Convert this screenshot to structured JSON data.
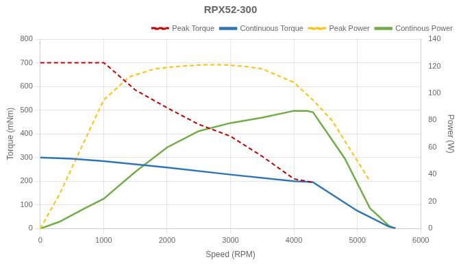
{
  "chart_data": {
    "type": "line",
    "title": "RPX52-300",
    "xlabel": "Speed (RPM)",
    "ylabel": "Torque (mNm)",
    "y2label": "Power (W)",
    "xlim": [
      0,
      6000
    ],
    "xticks": [
      0,
      1000,
      2000,
      3000,
      4000,
      5000,
      6000
    ],
    "ylim": [
      0,
      800
    ],
    "yticks": [
      0,
      100,
      200,
      300,
      400,
      500,
      600,
      700,
      800
    ],
    "y2lim": [
      0,
      140
    ],
    "y2ticks": [
      0,
      20,
      40,
      60,
      80,
      100,
      120,
      140
    ],
    "grid": true,
    "legend": "upper right",
    "series": [
      {
        "name": "Peak Torque",
        "color": "#c00000",
        "line_style": "dashed",
        "axis": "y",
        "x": [
          0,
          700,
          1000,
          1050,
          1500,
          2000,
          2500,
          3000,
          3500,
          4000,
          4200,
          4300
        ],
        "values": [
          700,
          700,
          700,
          690,
          585,
          510,
          440,
          390,
          305,
          210,
          200,
          195
        ]
      },
      {
        "name": "Continuous Torque",
        "color": "#2e75b6",
        "line_style": "solid",
        "axis": "y",
        "x": [
          0,
          500,
          1000,
          2000,
          3000,
          4000,
          4200,
          4300,
          5000,
          5500,
          5600
        ],
        "values": [
          300,
          295,
          285,
          258,
          228,
          200,
          198,
          196,
          75,
          8,
          2
        ]
      },
      {
        "name": "Peak Power",
        "color": "#ffc000",
        "line_style": "dashed",
        "axis": "y2",
        "x": [
          0,
          300,
          700,
          1000,
          1400,
          1800,
          2200,
          2600,
          2900,
          3200,
          3500,
          4000,
          4300,
          4600,
          5000,
          5200
        ],
        "values": [
          0,
          25,
          65,
          95,
          112,
          118,
          120,
          121,
          121,
          120,
          118,
          108,
          95,
          80,
          50,
          35
        ]
      },
      {
        "name": "Continous Power",
        "color": "#70ad47",
        "line_style": "solid",
        "axis": "y2",
        "x": [
          0,
          300,
          700,
          1000,
          1500,
          2000,
          2500,
          3000,
          3500,
          4000,
          4200,
          4300,
          4800,
          5200,
          5500,
          5600
        ],
        "values": [
          0,
          5,
          15,
          22,
          42,
          60,
          72,
          78,
          82,
          87,
          87,
          86,
          52,
          15,
          2,
          0
        ]
      }
    ]
  }
}
